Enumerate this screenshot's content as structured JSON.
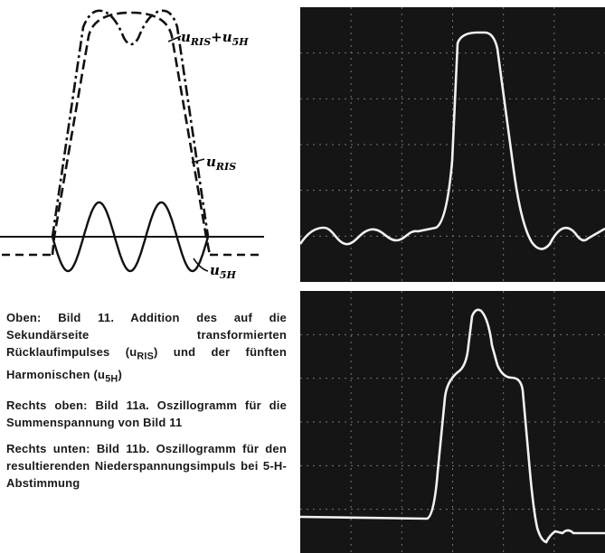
{
  "diagram": {
    "labels": {
      "sum_main": "u",
      "sum_sub": "RIS",
      "sum_plus": "+u",
      "sum_sub2": "5H",
      "ris_main": "u",
      "ris_sub": "RIS",
      "h5_main": "u",
      "h5_sub": "5H"
    }
  },
  "captions": [
    {
      "part1": "Oben: Bild 11. Addition des auf die Sekundärseite transformierten Rücklaufimpulses (u",
      "sub1": "RIS",
      "part2": ") und der fünften Harmonischen (u",
      "sub2": "5H",
      "part3": ")"
    },
    {
      "text": "Rechts oben: Bild 11a. Oszillogramm für die Summenspannung von Bild 11"
    },
    {
      "text": "Rechts unten: Bild 11b. Oszillogramm für den resultierenden Niederspannungsimpuls bei 5-H-Abstimmung"
    }
  ]
}
